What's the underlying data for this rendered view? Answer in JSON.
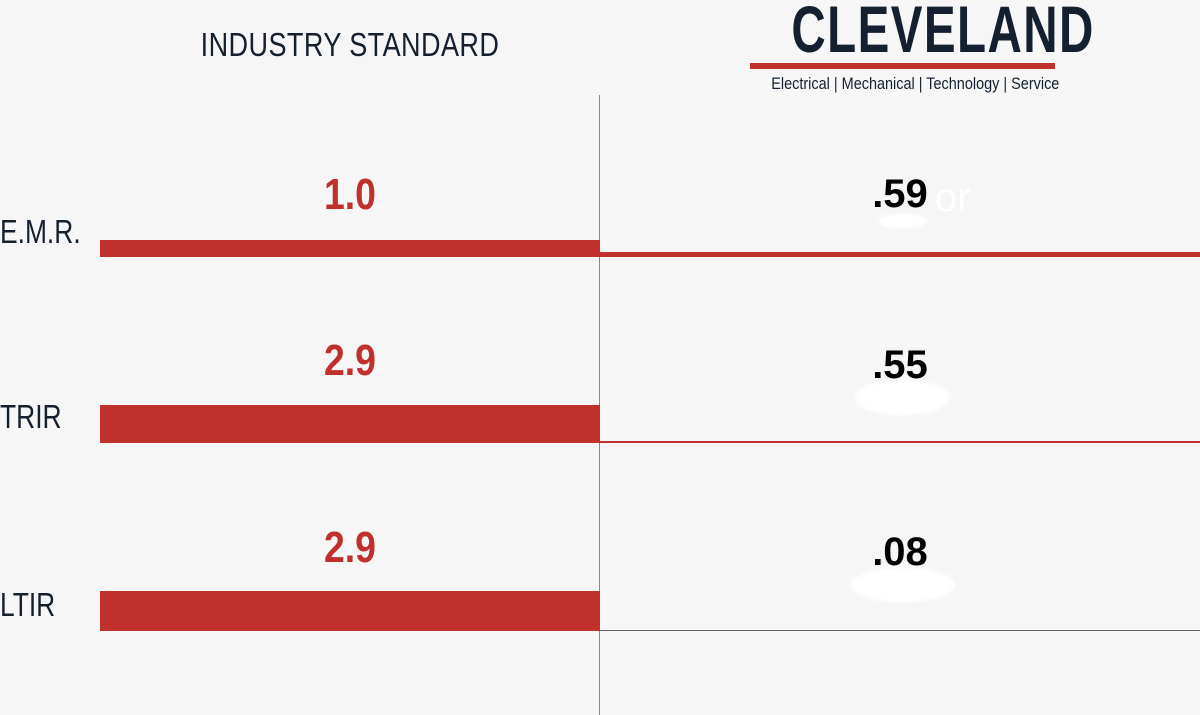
{
  "header": {
    "column_title": "INDUSTRY STANDARD",
    "logo_text": "CLEVELAND",
    "logo_tagline": "Electrical | Mechanical | Technology | Service"
  },
  "rows": [
    {
      "label": "E.M.R.",
      "industry": "1.0",
      "cleveland": ".59",
      "ghost_text": "or"
    },
    {
      "label": "TRIR",
      "industry": "2.9",
      "cleveland": ".55"
    },
    {
      "label": "LTIR",
      "industry": "2.9",
      "cleveland": ".08"
    }
  ],
  "colors": {
    "accent": "#c0302c",
    "navy": "#14202f",
    "background": "#f6f6f6"
  }
}
